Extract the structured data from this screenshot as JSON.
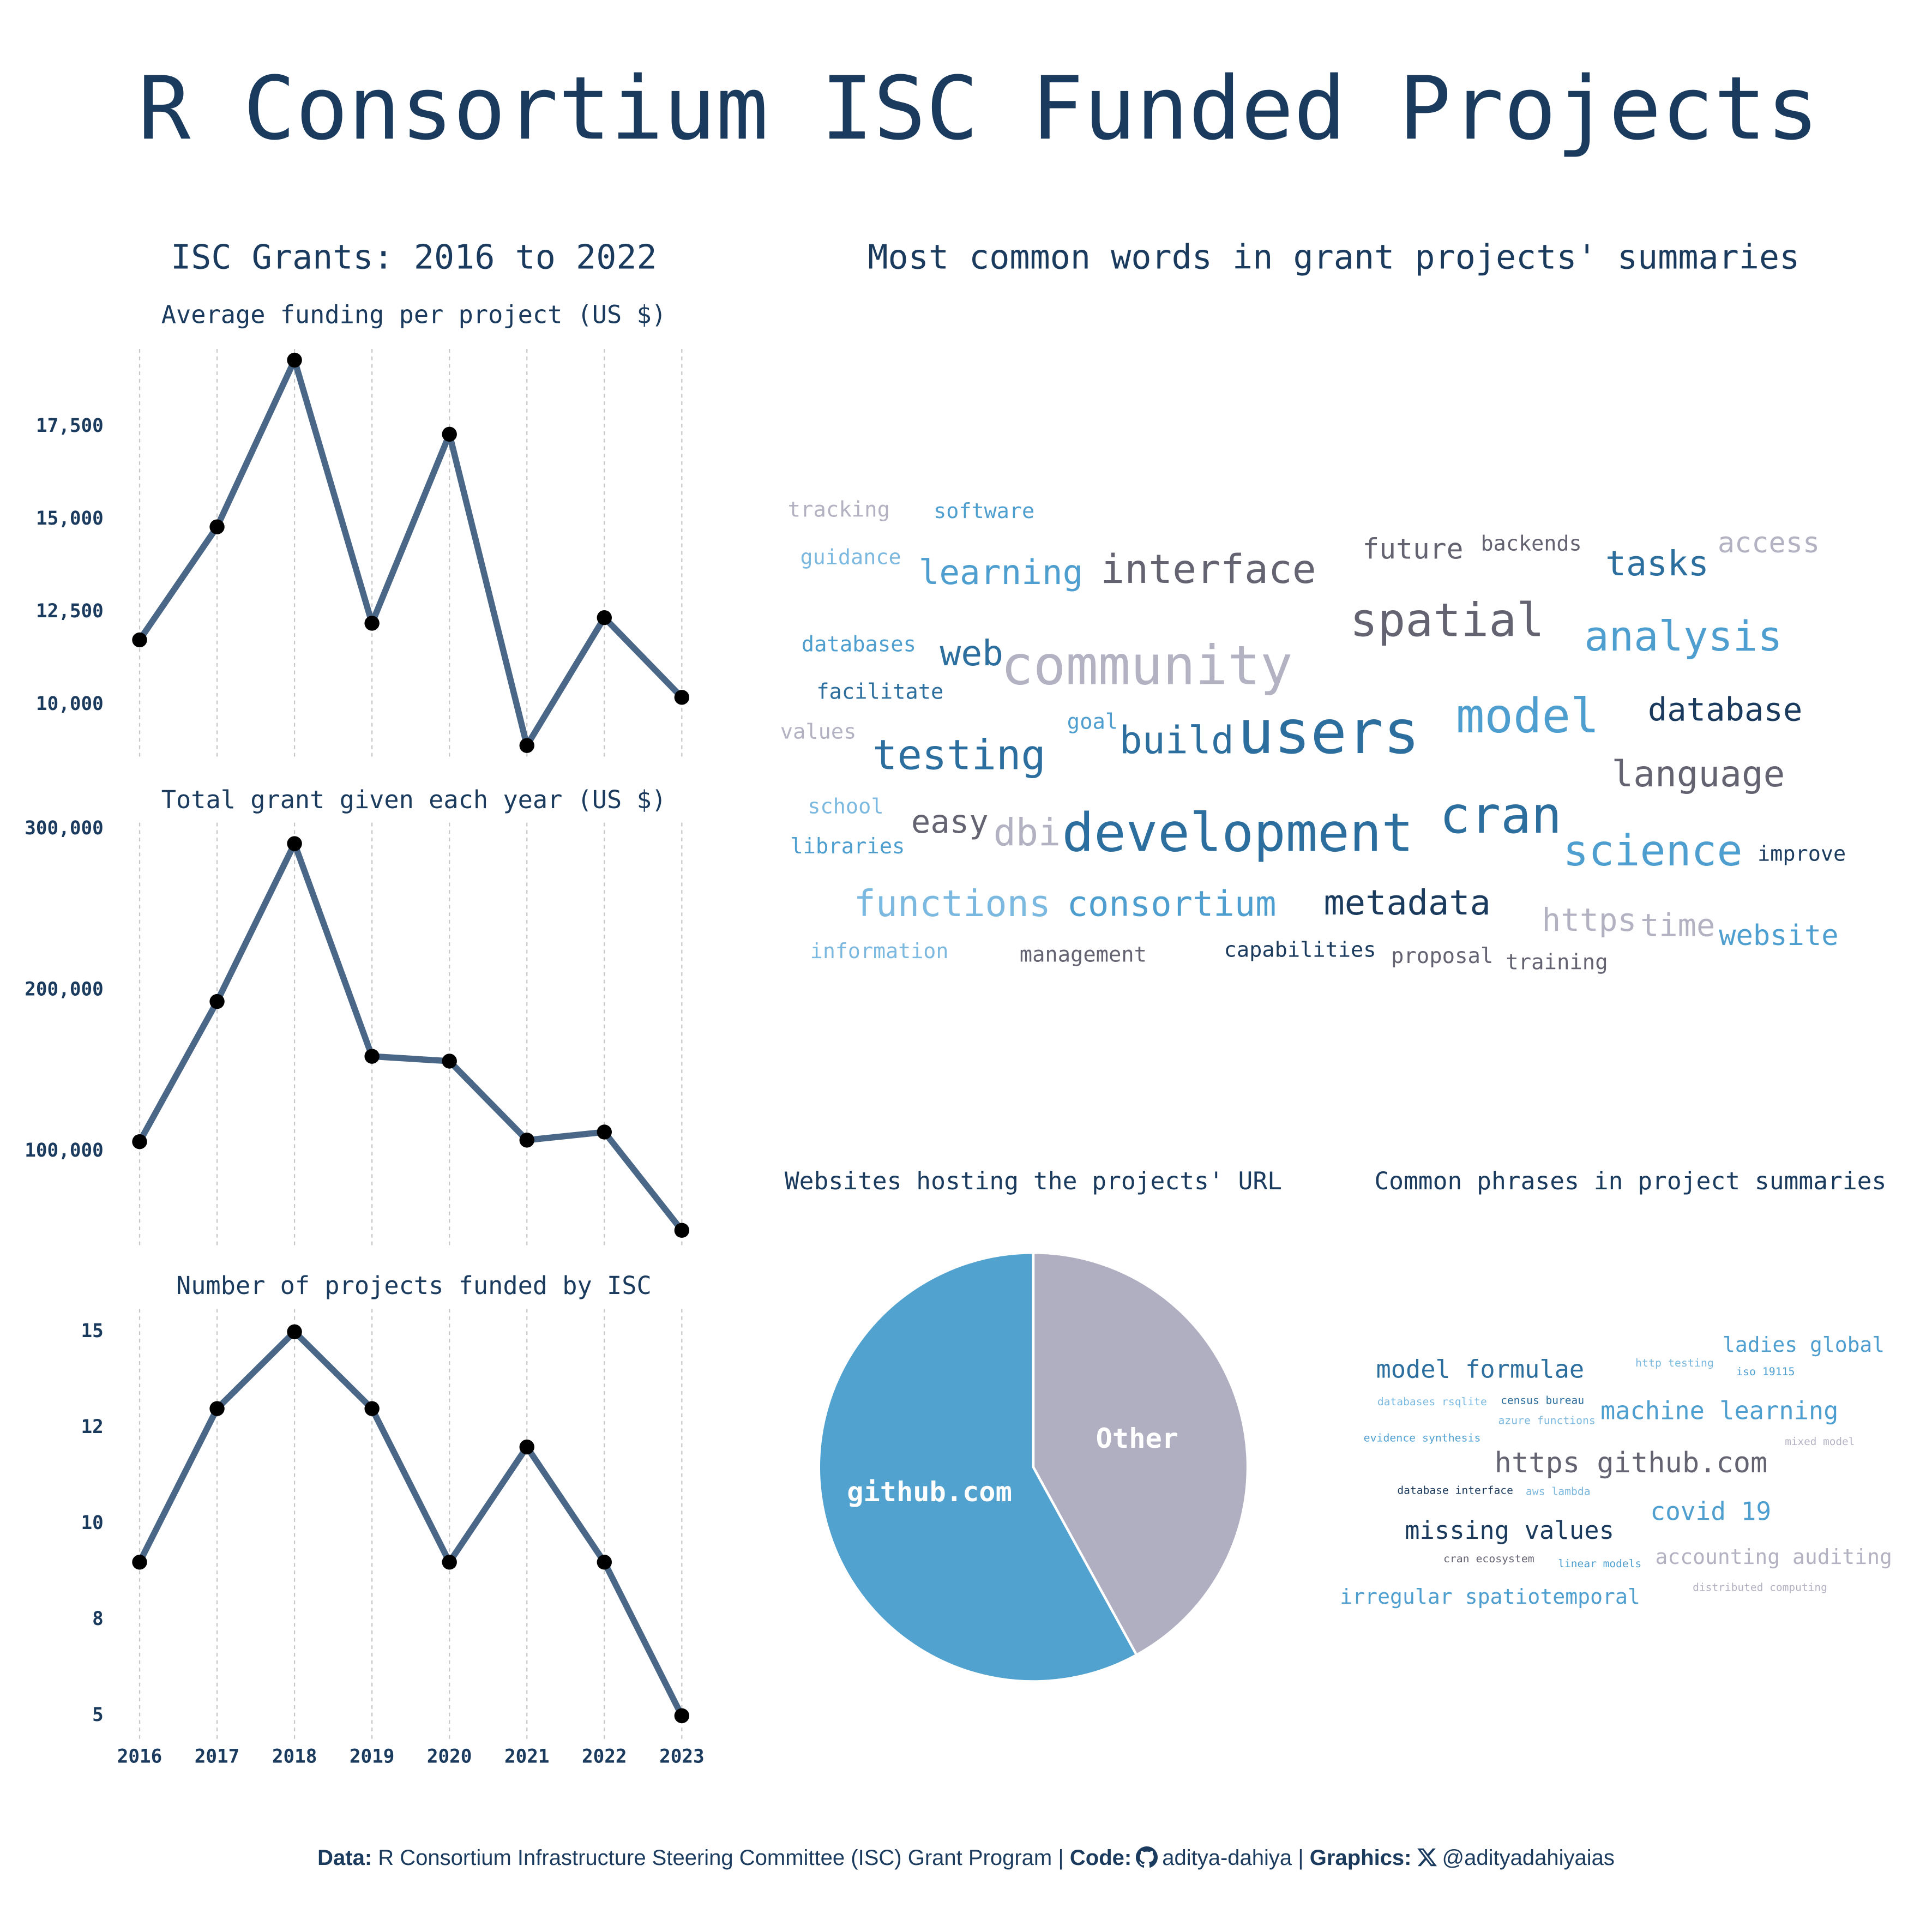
{
  "title": "R Consortium ISC Funded Projects",
  "section_title": "ISC Grants: 2016 to 2022",
  "chart_data": [
    {
      "type": "line",
      "title": "Average funding per project (US $)",
      "color": "#4a6787",
      "marker_color": "#000000",
      "x": [
        2016,
        2017,
        2018,
        2019,
        2020,
        2021,
        2022,
        2023
      ],
      "values": [
        11750,
        14800,
        19300,
        12200,
        17300,
        8900,
        12350,
        10200
      ],
      "xlim": [
        2016,
        2023
      ],
      "xticks": [
        2016,
        2017,
        2018,
        2019,
        2020,
        2021,
        2022,
        2023
      ],
      "ylim": [
        8500,
        19600
      ],
      "yticks": [
        {
          "value": 10000,
          "label": "10,000"
        },
        {
          "value": 12500,
          "label": "12,500"
        },
        {
          "value": 15000,
          "label": "15,000"
        },
        {
          "value": 17500,
          "label": "17,500"
        }
      ],
      "grid": "x"
    },
    {
      "type": "line",
      "title": "Total grant given each year (US $)",
      "color": "#4a6787",
      "marker_color": "#000000",
      "x": [
        2016,
        2017,
        2018,
        2019,
        2020,
        2021,
        2022,
        2023
      ],
      "values": [
        106000,
        193000,
        291000,
        159000,
        156000,
        107000,
        112000,
        51000
      ],
      "xlim": [
        2016,
        2023
      ],
      "xticks": [
        2016,
        2017,
        2018,
        2019,
        2020,
        2021,
        2022,
        2023
      ],
      "ylim": [
        41000,
        304000
      ],
      "yticks": [
        {
          "value": 100000,
          "label": "100,000"
        },
        {
          "value": 200000,
          "label": "200,000"
        },
        {
          "value": 300000,
          "label": "300,000"
        }
      ],
      "grid": "x"
    },
    {
      "type": "line",
      "title": "Number of projects funded by ISC",
      "color": "#4a6787",
      "marker_color": "#000000",
      "x": [
        2016,
        2017,
        2018,
        2019,
        2020,
        2021,
        2022,
        2023
      ],
      "values": [
        9,
        13,
        15,
        13,
        9,
        12,
        9,
        5
      ],
      "xlim": [
        2016,
        2023
      ],
      "xticks": [
        2016,
        2017,
        2018,
        2019,
        2020,
        2021,
        2022,
        2023
      ],
      "ylim": [
        4.4,
        15.6
      ],
      "yticks": [
        5,
        {
          "value": 7.5,
          "label": "8"
        },
        10,
        {
          "value": 12.5,
          "label": "12"
        },
        15
      ],
      "grid": "x"
    },
    {
      "type": "wordcloud",
      "title": "Most common words in grant projects' summaries",
      "words": [
        {
          "text": "tracking",
          "color": "#b3b2c2"
        },
        {
          "text": "software",
          "color": "#4e9fcf"
        },
        {
          "text": "guidance",
          "color": "#7cb9e0"
        },
        {
          "text": "learning",
          "color": "#4e9fcf"
        },
        {
          "text": "interface",
          "color": "#646372"
        },
        {
          "text": "future",
          "color": "#646372"
        },
        {
          "text": "backends",
          "color": "#646372"
        },
        {
          "text": "tasks",
          "color": "#2c6e9e"
        },
        {
          "text": "access",
          "color": "#b3b2c2"
        },
        {
          "text": "databases",
          "color": "#4e9fcf"
        },
        {
          "text": "web",
          "color": "#2c6e9e"
        },
        {
          "text": "community",
          "color": "#b3b2c2"
        },
        {
          "text": "spatial",
          "color": "#646372"
        },
        {
          "text": "analysis",
          "color": "#4e9fcf"
        },
        {
          "text": "facilitate",
          "color": "#2c6e9e"
        },
        {
          "text": "database",
          "color": "#1a3a5e"
        },
        {
          "text": "values",
          "color": "#b3b2c2"
        },
        {
          "text": "goal",
          "color": "#4e9fcf"
        },
        {
          "text": "build",
          "color": "#2c6e9e"
        },
        {
          "text": "users",
          "color": "#2c6e9e"
        },
        {
          "text": "model",
          "color": "#4e9fcf"
        },
        {
          "text": "testing",
          "color": "#2c6e9e"
        },
        {
          "text": "language",
          "color": "#646372"
        },
        {
          "text": "school",
          "color": "#7cb9e0"
        },
        {
          "text": "easy",
          "color": "#646372"
        },
        {
          "text": "dbi",
          "color": "#b3b2c2"
        },
        {
          "text": "development",
          "color": "#2c6e9e"
        },
        {
          "text": "cran",
          "color": "#2c6e9e"
        },
        {
          "text": "science",
          "color": "#4e9fcf"
        },
        {
          "text": "improve",
          "color": "#1a3a5e"
        },
        {
          "text": "libraries",
          "color": "#4e9fcf"
        },
        {
          "text": "functions",
          "color": "#7cb9e0"
        },
        {
          "text": "consortium",
          "color": "#4e9fcf"
        },
        {
          "text": "metadata",
          "color": "#1a3a5e"
        },
        {
          "text": "https",
          "color": "#b3b2c2"
        },
        {
          "text": "time",
          "color": "#b3b2c2"
        },
        {
          "text": "website",
          "color": "#4e9fcf"
        },
        {
          "text": "information",
          "color": "#7cb9e0"
        },
        {
          "text": "management",
          "color": "#646372"
        },
        {
          "text": "capabilities",
          "color": "#1a3a5e"
        },
        {
          "text": "proposal",
          "color": "#646372"
        },
        {
          "text": "training",
          "color": "#646372"
        }
      ]
    },
    {
      "type": "pie",
      "title": "Websites hosting the projects' URL",
      "categories": [
        "github.com",
        "Other"
      ],
      "values": [
        58,
        42
      ],
      "colors": [
        "#52a2d0",
        "#b0afc1"
      ]
    },
    {
      "type": "wordcloud",
      "title": "Common phrases in project summaries",
      "words": [
        {
          "text": "ladies global",
          "color": "#4e9fcf"
        },
        {
          "text": "http testing",
          "color": "#7cb9e0"
        },
        {
          "text": "iso 19115",
          "color": "#4e9fcf"
        },
        {
          "text": "model formulae",
          "color": "#2c6e9e"
        },
        {
          "text": "databases rsqlite",
          "color": "#7cb9e0"
        },
        {
          "text": "census bureau",
          "color": "#2c6e9e"
        },
        {
          "text": "machine learning",
          "color": "#4e9fcf"
        },
        {
          "text": "azure functions",
          "color": "#7cb9e0"
        },
        {
          "text": "evidence synthesis",
          "color": "#4e9fcf"
        },
        {
          "text": "mixed model",
          "color": "#b3b2c2"
        },
        {
          "text": "https github.com",
          "color": "#646372"
        },
        {
          "text": "database interface",
          "color": "#1a3a5e"
        },
        {
          "text": "aws lambda",
          "color": "#7cb9e0"
        },
        {
          "text": "covid 19",
          "color": "#4e9fcf"
        },
        {
          "text": "missing values",
          "color": "#1a3a5e"
        },
        {
          "text": "cran ecosystem",
          "color": "#646372"
        },
        {
          "text": "linear models",
          "color": "#4e9fcf"
        },
        {
          "text": "accounting auditing",
          "color": "#b3b2c2"
        },
        {
          "text": "distributed computing",
          "color": "#b3b2c2"
        },
        {
          "text": "irregular spatiotemporal",
          "color": "#4e9fcf"
        }
      ]
    }
  ],
  "caption": {
    "data_label": "Data:",
    "data_text": "R Consortium Infrastructure Steering Committee (ISC) Grant Program",
    "separator": "|",
    "code_label": "Code:",
    "code_handle": "aditya-dahiya",
    "graphics_label": "Graphics:",
    "graphics_handle": "@adityadahiyaias"
  }
}
